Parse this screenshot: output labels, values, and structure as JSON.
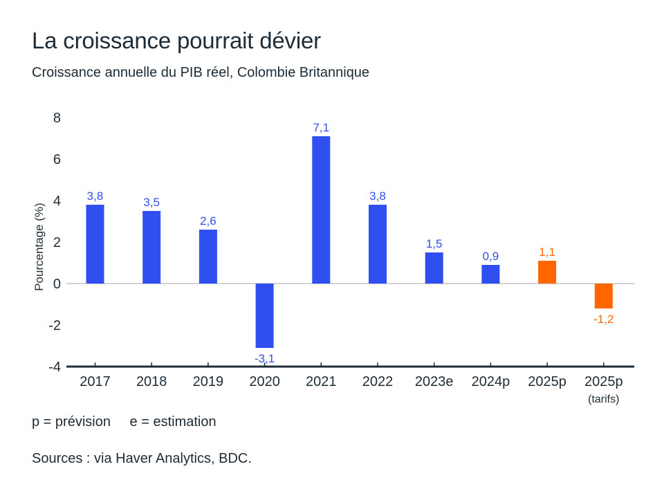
{
  "header": {
    "title": "La croissance pourrait dévier",
    "subtitle": "Croissance annuelle du PIB réel, Colombie Britannique"
  },
  "footer": {
    "notes": [
      "p = prévision",
      "e = estimation"
    ],
    "source": "Sources : via Haver Analytics, BDC."
  },
  "colors": {
    "actual": "#2f4ff0",
    "forecast": "#ff6600",
    "text": "#1d2b36",
    "zero_line": "#d3d3d3"
  },
  "chart_data": {
    "type": "bar",
    "title": "La croissance pourrait dévier",
    "subtitle": "Croissance annuelle du PIB réel, Colombie Britannique",
    "xlabel": "",
    "ylabel": "Pourcentage (%)",
    "ylim": [
      -4,
      8
    ],
    "yticks": [
      -4,
      -2,
      0,
      2,
      4,
      6,
      8
    ],
    "ytick_labels": [
      "-4",
      "-2",
      "0",
      "2",
      "4",
      "6",
      "8"
    ],
    "grid": false,
    "categories": [
      "2017",
      "2018",
      "2019",
      "2020",
      "2021",
      "2022",
      "2023e",
      "2024p",
      "2025p",
      "2025p"
    ],
    "category_sublabels": [
      "",
      "",
      "",
      "",
      "",
      "",
      "",
      "",
      "",
      "(tarifs)"
    ],
    "values": [
      3.8,
      3.5,
      2.6,
      -3.1,
      7.1,
      3.8,
      1.5,
      0.9,
      1.1,
      -1.2
    ],
    "value_labels": [
      "3,8",
      "3,5",
      "2,6",
      "-3,1",
      "7,1",
      "3,8",
      "1,5",
      "0,9",
      "1,1",
      "-1,2"
    ],
    "bar_group": [
      "actual",
      "actual",
      "actual",
      "actual",
      "actual",
      "actual",
      "actual",
      "actual",
      "forecast",
      "forecast"
    ]
  }
}
